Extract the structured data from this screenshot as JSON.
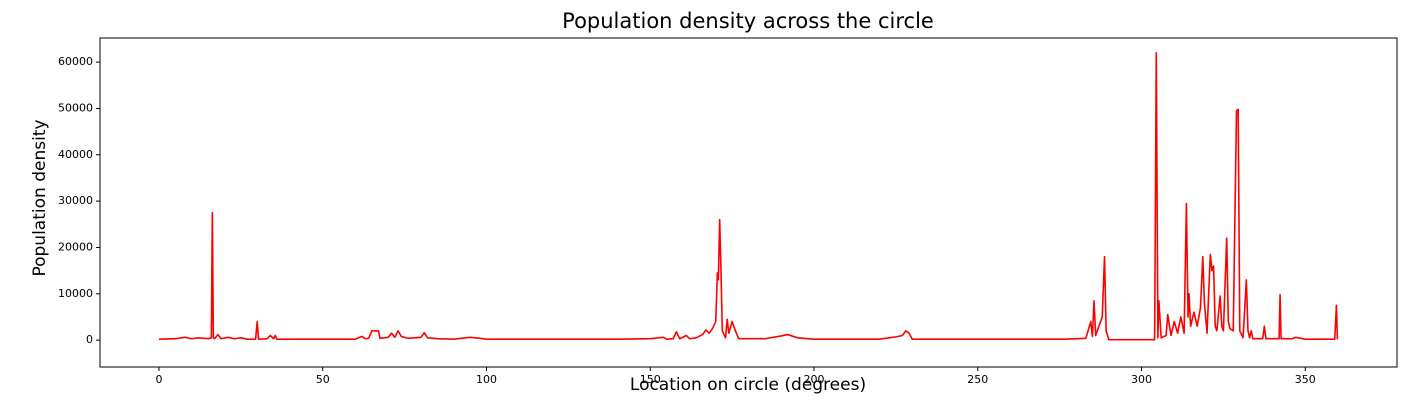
{
  "chart_data": {
    "type": "line",
    "title": "Population density across the circle",
    "xlabel": "Location on circle (degrees)",
    "ylabel": "Population density",
    "xlim": [
      -18,
      378
    ],
    "ylim": [
      -5800,
      65200
    ],
    "xticks": [
      0,
      50,
      100,
      150,
      200,
      250,
      300,
      350
    ],
    "yticks": [
      0,
      10000,
      20000,
      30000,
      40000,
      50000,
      60000
    ],
    "x": [
      0,
      5,
      8,
      10,
      12,
      15,
      16,
      16.3,
      16.6,
      17,
      18,
      19,
      21,
      23,
      25,
      27,
      29.5,
      30,
      30.4,
      33,
      34,
      35,
      35.5,
      36,
      40,
      50,
      60,
      62,
      63,
      64,
      65,
      67,
      67.5,
      70,
      71,
      72,
      73,
      74,
      76,
      80,
      81,
      82,
      85,
      90,
      95,
      98,
      100,
      120,
      140,
      150,
      154,
      155,
      157,
      158,
      159,
      161,
      162,
      164,
      166,
      167,
      168,
      169,
      170,
      170.5,
      170.8,
      171.2,
      171.6,
      172,
      173,
      173.5,
      174,
      175,
      176,
      177,
      185,
      190,
      192,
      195,
      200,
      220,
      225,
      227,
      228,
      229,
      230,
      242,
      270,
      277,
      283,
      284.5,
      285,
      285.5,
      286,
      287,
      288,
      288.7,
      289.2,
      290,
      304,
      304.5,
      305,
      305.3,
      306,
      307.5,
      308,
      309,
      310,
      311,
      312,
      313,
      313.7,
      314.2,
      314.5,
      315,
      316,
      317,
      318,
      318.7,
      319.2,
      320,
      321,
      321.5,
      322,
      322.5,
      323,
      324,
      324.5,
      325,
      326,
      326.5,
      327,
      328,
      329,
      329.5,
      330,
      331,
      332,
      332.5,
      333,
      333.5,
      334,
      337,
      337.5,
      338,
      342,
      342.3,
      342.6,
      346,
      347,
      350,
      359,
      359.5,
      359.8
    ],
    "series": [
      {
        "color": "#ff0000",
        "values": [
          200,
          300,
          600,
          300,
          500,
          300,
          500,
          27500,
          500,
          300,
          1200,
          300,
          600,
          300,
          500,
          200,
          200,
          4000,
          200,
          300,
          1000,
          300,
          1000,
          200,
          200,
          200,
          200,
          800,
          300,
          400,
          2000,
          2000,
          400,
          600,
          1500,
          600,
          2000,
          800,
          400,
          600,
          1600,
          500,
          300,
          200,
          600,
          400,
          200,
          200,
          200,
          300,
          600,
          200,
          300,
          1800,
          300,
          1000,
          300,
          500,
          1200,
          2200,
          1500,
          2500,
          4000,
          14500,
          13000,
          26000,
          15000,
          2000,
          500,
          4500,
          1500,
          4000,
          2000,
          300,
          300,
          900,
          1200,
          500,
          200,
          200,
          700,
          1000,
          2000,
          1500,
          200,
          200,
          200,
          200,
          400,
          4000,
          800,
          8500,
          1000,
          3000,
          5000,
          18000,
          2000,
          100,
          100,
          62000,
          500,
          8500,
          500,
          1000,
          5500,
          1000,
          4000,
          1500,
          5000,
          1500,
          29500,
          5000,
          10000,
          3000,
          6000,
          3000,
          7000,
          18000,
          8000,
          1500,
          18500,
          15000,
          16000,
          3000,
          2000,
          9500,
          3000,
          2000,
          22000,
          4000,
          2500,
          2000,
          49500,
          49800,
          2000,
          500,
          13000,
          2000,
          500,
          2000,
          300,
          300,
          3000,
          300,
          300,
          9800,
          300,
          300,
          600,
          200,
          200,
          7500,
          200
        ]
      }
    ]
  }
}
